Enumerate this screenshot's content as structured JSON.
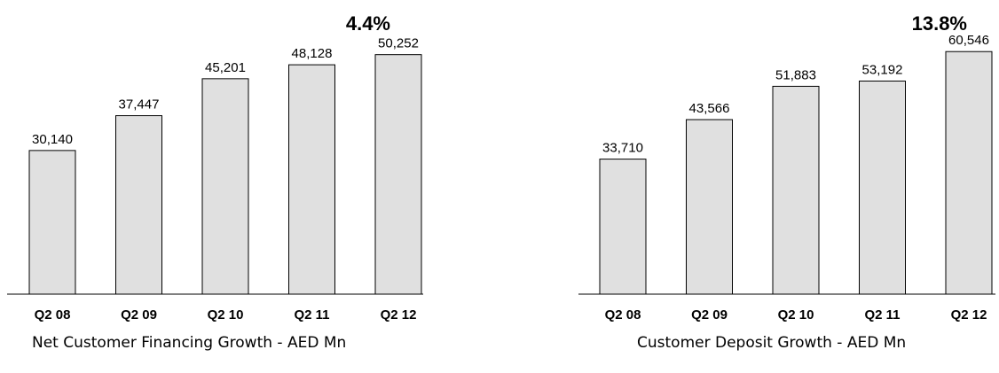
{
  "chart_data": [
    {
      "type": "bar",
      "title": "Net Customer Financing Growth - AED Mn",
      "growth_label": "4.4%",
      "categories": [
        "Q2 08",
        "Q2 09",
        "Q2 10",
        "Q2 11",
        "Q2 12"
      ],
      "values": [
        30140,
        37447,
        45201,
        48128,
        50252
      ],
      "value_labels": [
        "30,140",
        "37,447",
        "45,201",
        "48,128",
        "50,252"
      ],
      "bar_color": "#e0e0e0",
      "ylim": [
        0,
        58000
      ],
      "grid": false,
      "legend": "none"
    },
    {
      "type": "bar",
      "title": "Customer Deposit Growth - AED Mn",
      "growth_label": "13.8%",
      "categories": [
        "Q2 08",
        "Q2 09",
        "Q2 10",
        "Q2 11",
        "Q2 12"
      ],
      "values": [
        33710,
        43566,
        51883,
        53192,
        60546
      ],
      "value_labels": [
        "33,710",
        "43,566",
        "51,883",
        "53,192",
        "60,546"
      ],
      "bar_color": "#e0e0e0",
      "ylim": [
        0,
        69000
      ],
      "grid": false,
      "legend": "none"
    }
  ]
}
